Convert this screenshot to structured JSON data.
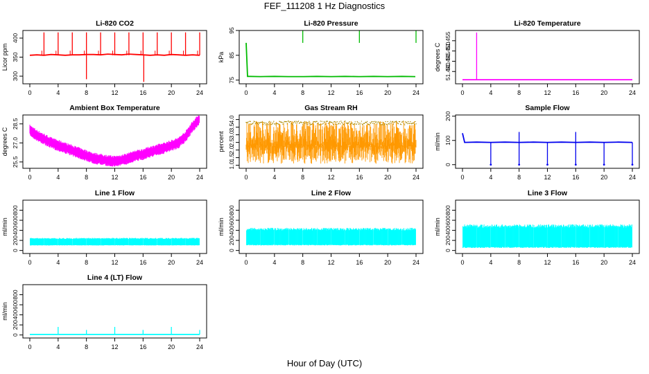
{
  "figure": {
    "title": "FEF_111208  1 Hz Diagnostics",
    "xlabel": "Hour of Day (UTC)"
  },
  "chart_data": [
    {
      "type": "line",
      "title": "Li-820 CO2",
      "ylabel": "Licor ppm",
      "xlim": [
        0,
        24
      ],
      "xticks": [
        0,
        4,
        8,
        12,
        16,
        20,
        24
      ],
      "ylim": [
        280,
        420
      ],
      "yticks": [
        300,
        350,
        400
      ],
      "ytick_labels": [
        "300",
        "350",
        "400"
      ],
      "color": "#ff0000",
      "series": [
        {
          "x": [
            0,
            1,
            2,
            3,
            4,
            5,
            6,
            7,
            8,
            9,
            10,
            11,
            12,
            13,
            14,
            15,
            16,
            17,
            18,
            19,
            20,
            21,
            22,
            23,
            24
          ],
          "y": [
            355,
            356,
            355,
            357,
            356,
            355,
            356,
            356,
            357,
            357,
            356,
            358,
            357,
            356,
            358,
            357,
            356,
            355,
            356,
            355,
            357,
            356,
            355,
            356,
            355
          ]
        }
      ],
      "spikes": [
        {
          "x": 2,
          "y": 415
        },
        {
          "x": 4,
          "y": 415
        },
        {
          "x": 6,
          "y": 415
        },
        {
          "x": 8,
          "y": 415
        },
        {
          "x": 8,
          "y": 292
        },
        {
          "x": 10,
          "y": 415
        },
        {
          "x": 12,
          "y": 415
        },
        {
          "x": 14,
          "y": 415
        },
        {
          "x": 16,
          "y": 415
        },
        {
          "x": 16.1,
          "y": 285
        },
        {
          "x": 18,
          "y": 415
        },
        {
          "x": 20,
          "y": 415
        },
        {
          "x": 22,
          "y": 415
        },
        {
          "x": 24,
          "y": 415
        }
      ]
    },
    {
      "type": "line",
      "title": "Li-820 Pressure",
      "ylabel": "kPa",
      "xlim": [
        0,
        24
      ],
      "xticks": [
        0,
        4,
        8,
        12,
        16,
        20,
        24
      ],
      "ylim": [
        73.5,
        95
      ],
      "yticks": [
        75,
        85,
        95
      ],
      "ytick_labels": [
        "75",
        "85",
        "95"
      ],
      "color": "#00bb00",
      "series": [
        {
          "x": [
            0,
            0.2,
            0.4,
            2,
            4,
            6,
            7.9,
            8.1,
            10,
            12,
            14,
            15.9,
            16.1,
            18,
            20,
            22,
            23.9
          ],
          "y": [
            90,
            76.5,
            76.5,
            76.4,
            76.5,
            76.4,
            76.4,
            76.4,
            76.5,
            76.4,
            76.5,
            76.4,
            76.4,
            76.5,
            76.4,
            76.5,
            76.4
          ]
        }
      ],
      "spikes": [
        {
          "x": 8,
          "y": 95
        },
        {
          "x": 16,
          "y": 95
        },
        {
          "x": 24,
          "y": 95
        }
      ]
    },
    {
      "type": "line",
      "title": "Li-820 Temperature",
      "ylabel": "degrees C",
      "xlim": [
        0,
        24
      ],
      "xticks": [
        0,
        4,
        8,
        12,
        16,
        20,
        24
      ],
      "ylim": [
        51.434,
        51.46
      ],
      "yticks": [
        51.44,
        51.445,
        51.45,
        51.455
      ],
      "ytick_labels": [
        "51.440",
        "51.445",
        "51.450",
        "51.455"
      ],
      "color": "#ff00ff",
      "series": [
        {
          "x": [
            0,
            24
          ],
          "y": [
            51.436,
            51.436
          ]
        }
      ],
      "spikes": [
        {
          "x": 2,
          "y": 51.459
        }
      ]
    },
    {
      "type": "line",
      "title": "Ambient Box Temperature",
      "ylabel": "degrees C",
      "xlim": [
        0,
        24
      ],
      "xticks": [
        0,
        4,
        8,
        12,
        16,
        20,
        24
      ],
      "ylim": [
        25,
        29.2
      ],
      "yticks": [
        25.5,
        27.0,
        28.5
      ],
      "ytick_labels": [
        "25.5",
        "27.0",
        "28.5"
      ],
      "color": "#ff00ff",
      "series": [
        {
          "x": [
            0,
            1,
            2,
            3,
            4,
            5,
            6,
            7,
            8,
            9,
            10,
            11,
            12,
            13,
            14,
            15,
            16,
            17,
            18,
            19,
            20,
            21,
            22,
            23,
            24
          ],
          "y": [
            28.0,
            27.6,
            27.3,
            27.0,
            26.8,
            26.6,
            26.4,
            26.2,
            26.0,
            25.8,
            25.7,
            25.6,
            25.55,
            25.65,
            25.8,
            26.0,
            26.1,
            26.3,
            26.45,
            26.6,
            26.8,
            27.0,
            27.5,
            28.3,
            28.9
          ]
        }
      ],
      "band": 0.5
    },
    {
      "type": "area",
      "title": "Gas Stream RH",
      "ylabel": "percent",
      "xlim": [
        0,
        24
      ],
      "xticks": [
        0,
        4,
        8,
        12,
        16,
        20,
        24
      ],
      "ylim": [
        0.8,
        4.3
      ],
      "yticks": [
        1.0,
        1.5,
        2.0,
        2.5,
        3.0,
        3.5,
        4.0
      ],
      "ytick_labels": [
        "1.0",
        "1.5",
        "2.0",
        "2.5",
        "3.0",
        "3.5",
        "4.0"
      ],
      "color": "#ff9900",
      "edge_color": "#aa8800",
      "series": [
        {
          "x": [
            0,
            24
          ],
          "y": [
            1.1,
            3.9
          ]
        }
      ]
    },
    {
      "type": "line",
      "title": "Sample Flow",
      "ylabel": "ml/min",
      "xlim": [
        0,
        24
      ],
      "xticks": [
        0,
        4,
        8,
        12,
        16,
        20,
        24
      ],
      "ylim": [
        -15,
        205
      ],
      "yticks": [
        0,
        100,
        200
      ],
      "ytick_labels": [
        "0",
        "100",
        "200"
      ],
      "color": "#0000ee",
      "series": [
        {
          "x": [
            0,
            0.3,
            2,
            4,
            6,
            8,
            10,
            12,
            14,
            16,
            18,
            20,
            22,
            24
          ],
          "y": [
            130,
            92,
            93,
            92,
            93,
            92,
            93,
            92,
            93,
            92,
            93,
            92,
            93,
            92
          ]
        }
      ],
      "spikes_down": [
        {
          "x": 4,
          "y": 0
        },
        {
          "x": 8,
          "y": 0
        },
        {
          "x": 12,
          "y": 0
        },
        {
          "x": 16,
          "y": 0
        },
        {
          "x": 20,
          "y": 0
        },
        {
          "x": 24,
          "y": 0
        }
      ],
      "spikes_up": [
        {
          "x": 8,
          "y": 135
        },
        {
          "x": 16,
          "y": 135
        }
      ]
    },
    {
      "type": "area",
      "title": "Line 1 Flow",
      "ylabel": "ml/min",
      "xlim": [
        0,
        24
      ],
      "xticks": [
        0,
        4,
        8,
        12,
        16,
        20,
        24
      ],
      "ylim": [
        -60,
        1000
      ],
      "yticks": [
        0,
        200,
        400,
        600,
        800
      ],
      "ytick_labels": [
        "0",
        "200",
        "400",
        "600",
        "800"
      ],
      "color": "#00ffff",
      "series": [
        {
          "x": [
            0,
            24
          ],
          "y": [
            100,
            250
          ]
        }
      ]
    },
    {
      "type": "area",
      "title": "Line 2 Flow",
      "ylabel": "ml/min",
      "xlim": [
        0,
        24
      ],
      "xticks": [
        0,
        4,
        8,
        12,
        16,
        20,
        24
      ],
      "ylim": [
        -60,
        1000
      ],
      "yticks": [
        0,
        200,
        400,
        600,
        800
      ],
      "ytick_labels": [
        "0",
        "200",
        "400",
        "600",
        "800"
      ],
      "color": "#00ffff",
      "series": [
        {
          "x": [
            0,
            24
          ],
          "y": [
            100,
            450
          ]
        }
      ]
    },
    {
      "type": "area",
      "title": "Line 3 Flow",
      "ylabel": "ml/min",
      "xlim": [
        0,
        24
      ],
      "xticks": [
        0,
        4,
        8,
        12,
        16,
        20,
        24
      ],
      "ylim": [
        -60,
        1000
      ],
      "yticks": [
        0,
        200,
        400,
        600,
        800
      ],
      "ytick_labels": [
        "0",
        "200",
        "400",
        "600",
        "800"
      ],
      "color": "#00ffff",
      "series": [
        {
          "x": [
            0,
            24
          ],
          "y": [
            50,
            520
          ]
        }
      ]
    },
    {
      "type": "line",
      "title": "Line 4 (LT) Flow",
      "ylabel": "ml/min",
      "xlim": [
        0,
        24
      ],
      "xticks": [
        0,
        4,
        8,
        12,
        16,
        20,
        24
      ],
      "ylim": [
        -60,
        1000
      ],
      "yticks": [
        0,
        200,
        400,
        600,
        800
      ],
      "ytick_labels": [
        "0",
        "200",
        "400",
        "600",
        "800"
      ],
      "color": "#00ffff",
      "series": [
        {
          "x": [
            0,
            24
          ],
          "y": [
            10,
            10
          ]
        }
      ],
      "spikes": [
        {
          "x": 4,
          "y": 160
        },
        {
          "x": 8,
          "y": 100
        },
        {
          "x": 12,
          "y": 160
        },
        {
          "x": 16,
          "y": 100
        },
        {
          "x": 20,
          "y": 160
        },
        {
          "x": 24,
          "y": 100
        }
      ]
    }
  ]
}
